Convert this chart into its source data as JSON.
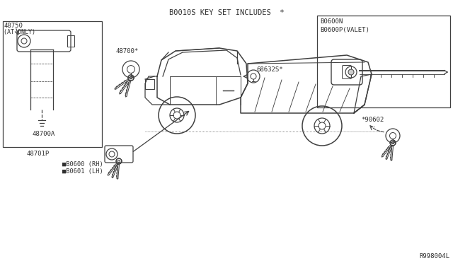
{
  "bg_color": "#ffffff",
  "lc": "#404040",
  "tc": "#303030",
  "fig_w": 6.4,
  "fig_h": 3.72,
  "dpi": 100,
  "title": "B0010S KEY SET INCLUDES  *",
  "labels": {
    "p48750": "48750",
    "p48750_sub": "(AT ONLY)",
    "p48700a": "48700A",
    "p48701p": "48701P",
    "p48700": "48700*",
    "p68632s": "68632S*",
    "pb0600n": "B0600N",
    "pb0600p": "B0600P(VALET)",
    "pb0600": "■B0600 (RH)",
    "pb0601": "■B0601 (LH)",
    "p90602": "*90602",
    "ref": "R998004L"
  }
}
